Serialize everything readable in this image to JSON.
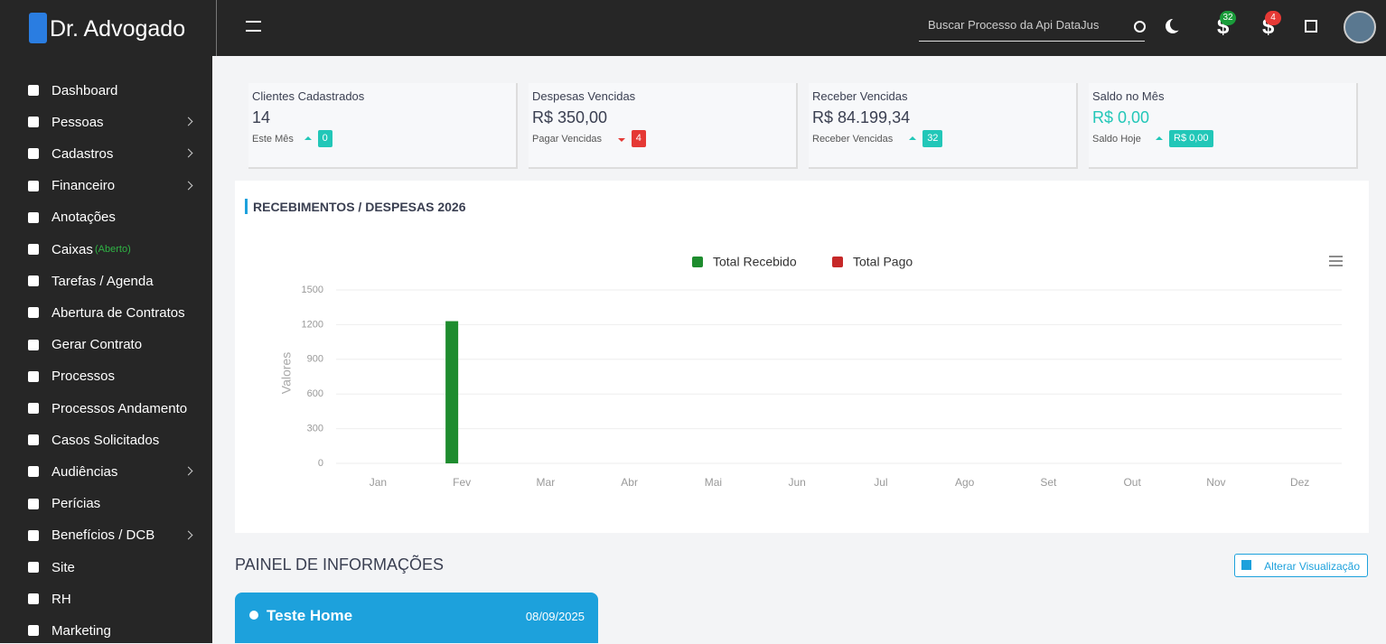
{
  "brand": "Dr. Advogado",
  "search_placeholder": "Buscar Processo da Api DataJus",
  "badges": [
    {
      "count": 32,
      "color": "#1a9c3a"
    },
    {
      "count": 4,
      "color": "#e53935"
    }
  ],
  "menu": [
    {
      "label": "Dashboard",
      "submenu": false
    },
    {
      "label": "Pessoas",
      "submenu": true
    },
    {
      "label": "Cadastros",
      "submenu": true
    },
    {
      "label": "Financeiro",
      "submenu": true
    },
    {
      "label": "Anotações",
      "submenu": false
    },
    {
      "label": "Caixas",
      "status": "(Aberto)",
      "submenu": false
    },
    {
      "label": "Tarefas / Agenda",
      "submenu": false
    },
    {
      "label": "Abertura de Contratos",
      "submenu": false
    },
    {
      "label": "Gerar Contrato",
      "submenu": false
    },
    {
      "label": "Processos",
      "submenu": false
    },
    {
      "label": "Processos Andamento",
      "submenu": false
    },
    {
      "label": "Casos Solicitados",
      "submenu": false
    },
    {
      "label": "Audiências",
      "submenu": true
    },
    {
      "label": "Perícias",
      "submenu": false
    },
    {
      "label": "Benefícios / DCB",
      "submenu": true
    },
    {
      "label": "Site",
      "submenu": false
    },
    {
      "label": "RH",
      "submenu": false
    },
    {
      "label": "Marketing",
      "submenu": false
    }
  ],
  "cards": [
    {
      "title": "Clientes Cadastrados",
      "value": "14",
      "value_color": "#3a3f51",
      "sub": "Este Mês",
      "trend": "up",
      "badge": "0",
      "badge_color": "#22c7b8"
    },
    {
      "title": "Despesas Vencidas",
      "value": "R$ 350,00",
      "value_color": "#3a3f51",
      "sub": "Pagar Vencidas",
      "trend": "down",
      "badge": "4",
      "badge_color": "#e53935"
    },
    {
      "title": "Receber Vencidas",
      "value": "R$ 84.199,34",
      "value_color": "#3a3f51",
      "sub": "Receber Vencidas",
      "trend": "up",
      "badge": "32",
      "badge_color": "#22c7b8"
    },
    {
      "title": "Saldo no Mês",
      "value": "R$ 0,00",
      "value_color": "#22c7b8",
      "sub": "Saldo Hoje",
      "trend": "up",
      "badge": "R$ 0,00",
      "badge_color": "#22c7b8"
    }
  ],
  "chart_data": {
    "type": "bar",
    "title": "RECEBIMENTOS / DESPESAS 2026",
    "y_label": "Valores",
    "categories": [
      "Jan",
      "Fev",
      "Mar",
      "Abr",
      "Mai",
      "Jun",
      "Jul",
      "Ago",
      "Set",
      "Out",
      "Nov",
      "Dez"
    ],
    "series": [
      {
        "name": "Total Recebido",
        "color": "#1e8c2e",
        "values": [
          0,
          1230,
          0,
          0,
          0,
          0,
          0,
          0,
          0,
          0,
          0,
          0
        ]
      },
      {
        "name": "Total Pago",
        "color": "#c62828",
        "values": [
          0,
          0,
          0,
          0,
          0,
          0,
          0,
          0,
          0,
          0,
          0,
          0
        ]
      }
    ],
    "ylim": [
      0,
      1500
    ],
    "yticks": [
      0,
      300,
      600,
      900,
      1200,
      1500
    ],
    "grid": true
  },
  "panel": {
    "title": "PAINEL DE INFORMAÇÕES",
    "button": "Alterar Visualização",
    "notes": [
      {
        "title": "Teste Home",
        "date": "08/09/2025"
      }
    ]
  }
}
